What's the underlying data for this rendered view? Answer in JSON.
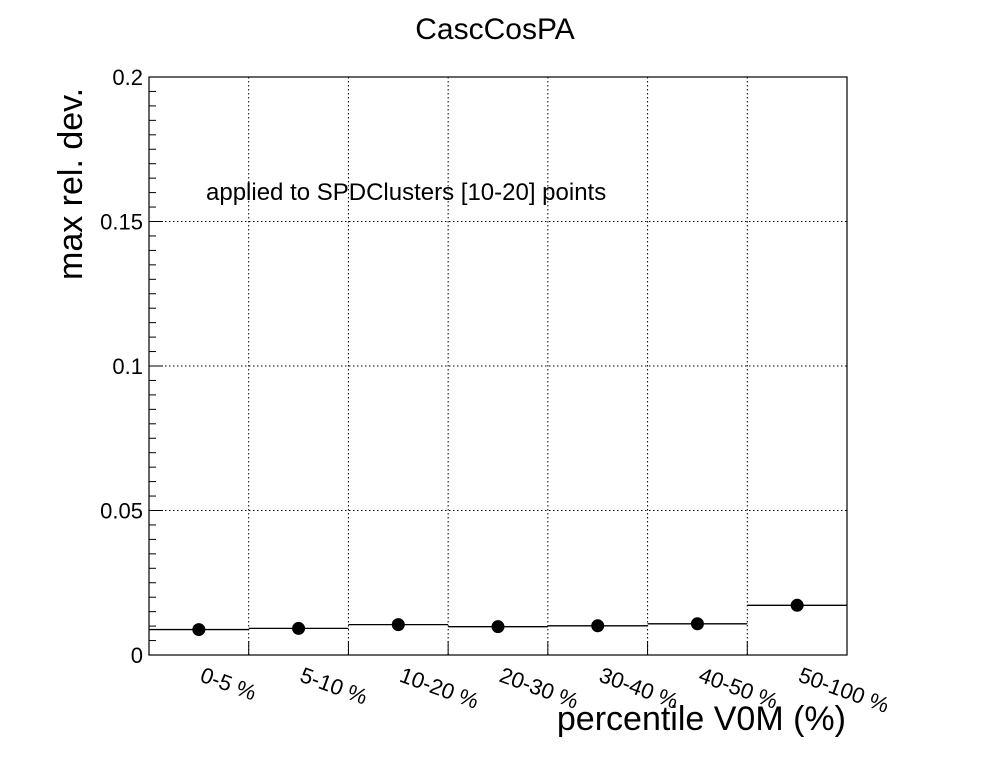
{
  "chart_data": {
    "type": "scatter",
    "title": "CascCosPA",
    "annotation": "applied to SPDClusters [10-20] points",
    "xlabel": "percentile V0M (%)",
    "ylabel": "max rel. dev.",
    "ylim": [
      0,
      0.2
    ],
    "yticks": [
      {
        "value": 0,
        "label": "0"
      },
      {
        "value": 0.05,
        "label": "0.05"
      },
      {
        "value": 0.1,
        "label": "0.1"
      },
      {
        "value": 0.15,
        "label": "0.15"
      },
      {
        "value": 0.2,
        "label": "0.2"
      }
    ],
    "categories": [
      "0-5 %",
      "5-10 %",
      "10-20 %",
      "20-30 %",
      "30-40 %",
      "40-50 %",
      "50-100 %"
    ],
    "values": [
      0.0088,
      0.0092,
      0.0105,
      0.0098,
      0.0101,
      0.0108,
      0.0172
    ],
    "errors": [
      0.0006,
      0.0009,
      0.0018,
      0.0012,
      0.0021,
      0.002,
      0.001
    ],
    "grid": true,
    "colors": {
      "marker": "#000000",
      "grid": "#000000",
      "background": "#ffffff"
    }
  }
}
